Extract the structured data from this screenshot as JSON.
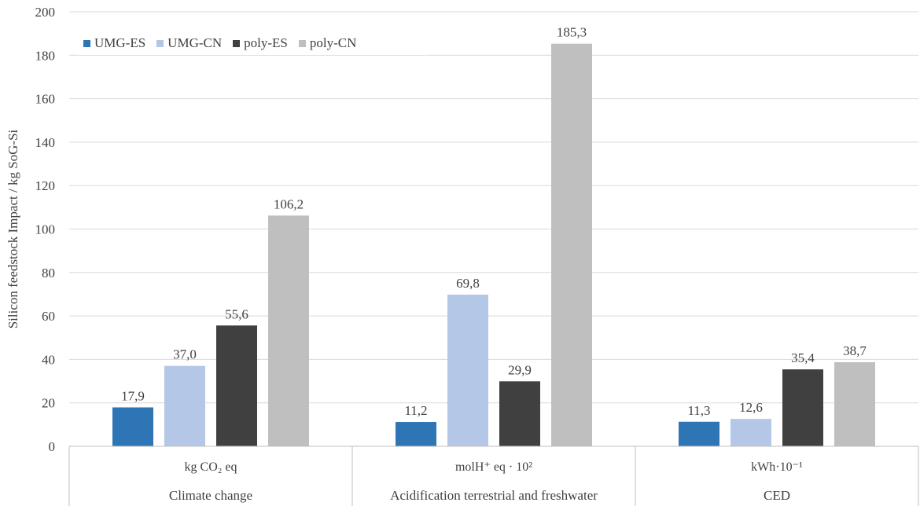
{
  "chart_data": {
    "type": "bar",
    "ylabel": "Silicon feedstock Impact / kg SoG-Si",
    "ylim": [
      0,
      200
    ],
    "yticks": [
      0,
      20,
      40,
      60,
      80,
      100,
      120,
      140,
      160,
      180,
      200
    ],
    "grid": true,
    "legend_position": "top-left",
    "categories": [
      {
        "unit": "kg CO₂ eq",
        "label": "Climate change"
      },
      {
        "unit": "molH⁺ eq  · 10²",
        "label": "Acidification terrestrial and freshwater"
      },
      {
        "unit": "kWh·10⁻¹",
        "label": "CED"
      }
    ],
    "series": [
      {
        "name": "UMG-ES",
        "color": "#2e75b6",
        "values": [
          17.9,
          11.2,
          11.3
        ],
        "labels": [
          "17,9",
          "11,2",
          "11,3"
        ]
      },
      {
        "name": "UMG-CN",
        "color": "#b4c7e7",
        "values": [
          37.0,
          69.8,
          12.6
        ],
        "labels": [
          "37,0",
          "69,8",
          "12,6"
        ]
      },
      {
        "name": "poly-ES",
        "color": "#404040",
        "values": [
          55.6,
          29.9,
          35.4
        ],
        "labels": [
          "55,6",
          "29,9",
          "35,4"
        ]
      },
      {
        "name": "poly-CN",
        "color": "#bfbfbf",
        "values": [
          106.2,
          185.3,
          38.7
        ],
        "labels": [
          "106,2",
          "185,3",
          "38,7"
        ]
      }
    ]
  }
}
